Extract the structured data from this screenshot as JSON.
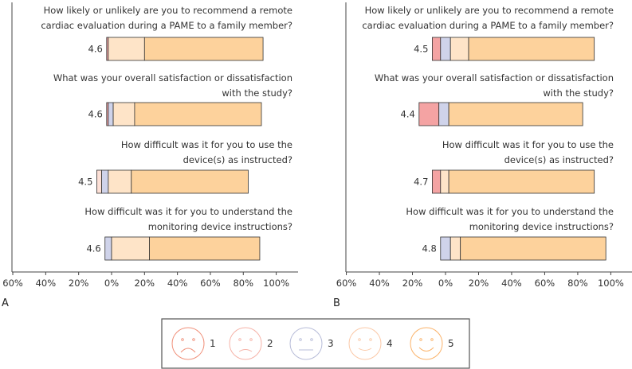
{
  "colors": {
    "1": "#f4a3a3",
    "2": "#fde0d6",
    "3": "#cfd3ea",
    "4": "#fee4c8",
    "5": "#fdd29c",
    "frame": "#555555",
    "face1": "#f0907a",
    "face2": "#f6b3a8",
    "face3": "#b7bcd8",
    "face4": "#fbc9a8",
    "face5": "#fbb36a"
  },
  "legend": {
    "items": [
      {
        "label": "1",
        "mood": "sad",
        "icon": "very-unlikely-face-icon"
      },
      {
        "label": "2",
        "mood": "slightly-sad",
        "icon": "unlikely-face-icon"
      },
      {
        "label": "3",
        "mood": "neutral",
        "icon": "neutral-face-icon"
      },
      {
        "label": "4",
        "mood": "slightly-happy",
        "icon": "likely-face-icon"
      },
      {
        "label": "5",
        "mood": "happy",
        "icon": "very-likely-face-icon"
      }
    ]
  },
  "chart_data": [
    {
      "type": "bar",
      "orientation": "horizontal-diverging-stacked",
      "panel_label": "A",
      "xlim": [
        -60,
        100
      ],
      "xticks": [
        "60%",
        "40%",
        "20%",
        "0%",
        "20%",
        "40%",
        "60%",
        "80%",
        "100%"
      ],
      "categories": [
        "How likely or unlikely are you to recommend a remote cardiac evaluation during a PAME to a family member?",
        "What was your overall satisfaction or dissatisfaction with the study?",
        "How difficult was it for you to use the device(s) as instructed?",
        "How difficult was it for you to understand the monitoring device instructions?"
      ],
      "question_lines": [
        [
          "How likely or unlikely are you to recommend a remote",
          "cardiac evaluation during a PAME to a family member?"
        ],
        [
          "What was your overall satisfaction or dissatisfaction",
          "with the study?"
        ],
        [
          "How difficult was it for you to use the",
          "device(s) as instructed?"
        ],
        [
          "How difficult was it for you to understand the",
          "monitoring device instructions?"
        ]
      ],
      "scores": [
        "4.6",
        "4.6",
        "4.5",
        "4.6"
      ],
      "series": [
        {
          "name": "1",
          "values": [
            -1,
            -1,
            0,
            0
          ]
        },
        {
          "name": "2",
          "values": [
            0,
            0,
            -3,
            0
          ]
        },
        {
          "name": "3",
          "values": [
            0,
            3,
            4,
            4
          ]
        },
        {
          "name": "4",
          "values": [
            22,
            13,
            14,
            23
          ]
        },
        {
          "name": "5",
          "values": [
            72,
            77,
            71,
            67
          ]
        }
      ],
      "starts": [
        -3,
        -3,
        -9,
        -4
      ]
    },
    {
      "type": "bar",
      "orientation": "horizontal-diverging-stacked",
      "panel_label": "B",
      "xlim": [
        -60,
        100
      ],
      "xticks": [
        "60%",
        "40%",
        "20%",
        "0%",
        "20%",
        "40%",
        "60%",
        "80%",
        "100%"
      ],
      "categories": [
        "How likely or unlikely are you to recommend a remote cardiac evaluation during a PAME to a family member?",
        "What was your overall satisfaction or dissatisfaction with the study?",
        "How difficult was it for you to use the device(s) as instructed?",
        "How difficult was it for you to understand the monitoring device instructions?"
      ],
      "question_lines": [
        [
          "How likely or unlikely are you to recommend a remote",
          "cardiac evaluation during a PAME to a family member?"
        ],
        [
          "What was your overall satisfaction or dissatisfaction",
          "with the study?"
        ],
        [
          "How difficult was it for you to use the",
          "device(s) as instructed?"
        ],
        [
          "How difficult was it for you to understand the",
          "monitoring device instructions?"
        ]
      ],
      "scores": [
        "4.5",
        "4.4",
        "4.7",
        "4.8"
      ],
      "series": [
        {
          "name": "1",
          "values": [
            5,
            12,
            5,
            0
          ]
        },
        {
          "name": "2",
          "values": [
            0,
            0,
            0,
            0
          ]
        },
        {
          "name": "3",
          "values": [
            6,
            6,
            0,
            6
          ]
        },
        {
          "name": "4",
          "values": [
            11,
            0,
            5,
            6
          ]
        },
        {
          "name": "5",
          "values": [
            76,
            81,
            88,
            88
          ]
        }
      ],
      "starts": [
        -8,
        -16,
        -8,
        -3
      ]
    }
  ]
}
